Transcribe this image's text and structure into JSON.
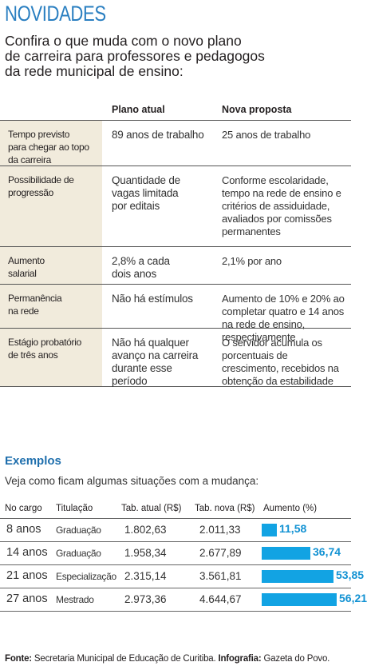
{
  "header": {
    "title": "NOVIDADES"
  },
  "intro": {
    "lines": [
      "Confira o que muda com o novo plano",
      "de carreira para professores e pedagogos",
      "da rede municipal de ensino:"
    ]
  },
  "comparison": {
    "col_atual": "Plano atual",
    "col_nova": "Nova proposta",
    "rows": [
      {
        "label": [
          "Tempo previsto",
          "para chegar ao topo",
          "da carreira"
        ],
        "atual": [
          "89 anos de trabalho"
        ],
        "nova": [
          "25 anos de trabalho"
        ]
      },
      {
        "label": [
          "Possibilidade de",
          "progressão"
        ],
        "atual": [
          "Quantidade de",
          "vagas limitada",
          "por editais"
        ],
        "nova": [
          "Conforme escolaridade,",
          "tempo na rede de ensino e",
          "critérios de assiduidade,",
          "avaliados por comissões",
          "permanentes"
        ]
      },
      {
        "label": [
          "Aumento",
          "salarial"
        ],
        "atual": [
          "2,8% a cada",
          "dois anos"
        ],
        "nova": [
          "2,1% por ano"
        ]
      },
      {
        "label": [
          "Permanência",
          "na rede"
        ],
        "atual": [
          "Não há estímulos"
        ],
        "nova": [
          "Aumento de 10% e 20% ao",
          "completar quatro e 14 anos",
          "na rede de ensino,",
          "respectivamente"
        ]
      },
      {
        "label": [
          "Estágio probatório",
          "de três anos"
        ],
        "atual": [
          "Não há qualquer",
          "avanço na carreira",
          "durante esse",
          "período"
        ],
        "nova": [
          "O servidor acumula os",
          "porcentuais de",
          "crescimento, recebidos na",
          "obtenção da estabilidade"
        ]
      }
    ]
  },
  "examples": {
    "title": "Exemplos",
    "subtitle": "Veja como ficam algumas situações com a mudança:",
    "headers": {
      "cargo": "No cargo",
      "titulacao": "Titulação",
      "atual": "Tab. atual (R$)",
      "nova": "Tab. nova (R$)",
      "aumento": "Aumento (%)"
    },
    "rows": [
      {
        "cargo": "8 anos",
        "titulacao": "Graduação",
        "atual": "1.802,63",
        "nova": "2.011,33",
        "aumento": "11,58",
        "aumento_value": 11.58
      },
      {
        "cargo": "14 anos",
        "titulacao": "Graduação",
        "atual": "1.958,34",
        "nova": "2.677,89",
        "aumento": "36,74",
        "aumento_value": 36.74
      },
      {
        "cargo": "21 anos",
        "titulacao": "Especialização",
        "atual": "2.315,14",
        "nova": "3.561,81",
        "aumento": "53,85",
        "aumento_value": 53.85
      },
      {
        "cargo": "27 anos",
        "titulacao": "Mestrado",
        "atual": "2.973,36",
        "nova": "4.644,67",
        "aumento": "56,21",
        "aumento_value": 56.21
      }
    ],
    "bar_color": "#12a3e3"
  },
  "footer": {
    "fonte_label": "Fonte:",
    "fonte_text": " Secretaria Municipal de Educação de Curitiba. ",
    "infografia_label": "Infografia:",
    "infografia_text": " Gazeta do Povo."
  }
}
